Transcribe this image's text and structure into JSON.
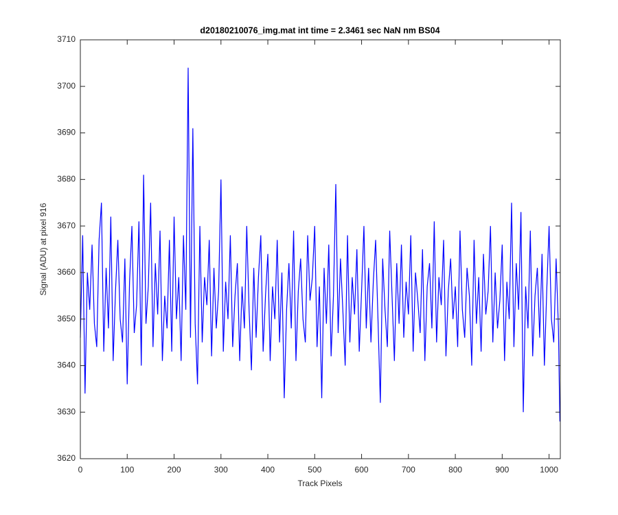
{
  "chart_data": {
    "type": "line",
    "title": "d20180210076_img.mat int time = 2.3461 sec  NaN nm BS04",
    "x_label": "Track Pixels",
    "y_label": "Signal (ADU) at pixel 916",
    "xlim": [
      0,
      1024
    ],
    "ylim": [
      3620,
      3710
    ],
    "xticks": [
      0,
      100,
      200,
      300,
      400,
      500,
      600,
      700,
      800,
      900,
      1000
    ],
    "yticks": [
      3620,
      3630,
      3640,
      3650,
      3660,
      3670,
      3680,
      3690,
      3700,
      3710
    ],
    "x": [
      0,
      5,
      10,
      15,
      20,
      25,
      30,
      35,
      40,
      45,
      50,
      55,
      60,
      65,
      70,
      75,
      80,
      85,
      90,
      95,
      100,
      105,
      110,
      115,
      120,
      125,
      130,
      135,
      140,
      145,
      150,
      155,
      160,
      165,
      170,
      175,
      180,
      185,
      190,
      195,
      200,
      205,
      210,
      215,
      220,
      225,
      230,
      235,
      240,
      245,
      250,
      255,
      260,
      265,
      270,
      275,
      280,
      285,
      290,
      295,
      300,
      305,
      310,
      315,
      320,
      325,
      330,
      335,
      340,
      345,
      350,
      355,
      360,
      365,
      370,
      375,
      380,
      385,
      390,
      395,
      400,
      405,
      410,
      415,
      420,
      425,
      430,
      435,
      440,
      445,
      450,
      455,
      460,
      465,
      470,
      475,
      480,
      485,
      490,
      495,
      500,
      505,
      510,
      515,
      520,
      525,
      530,
      535,
      540,
      545,
      550,
      555,
      560,
      565,
      570,
      575,
      580,
      585,
      590,
      595,
      600,
      605,
      610,
      615,
      620,
      625,
      630,
      635,
      640,
      645,
      650,
      655,
      660,
      665,
      670,
      675,
      680,
      685,
      690,
      695,
      700,
      705,
      710,
      715,
      720,
      725,
      730,
      735,
      740,
      745,
      750,
      755,
      760,
      765,
      770,
      775,
      780,
      785,
      790,
      795,
      800,
      805,
      810,
      815,
      820,
      825,
      830,
      835,
      840,
      845,
      850,
      855,
      860,
      865,
      870,
      875,
      880,
      885,
      890,
      895,
      900,
      905,
      910,
      915,
      920,
      925,
      930,
      935,
      940,
      945,
      950,
      955,
      960,
      965,
      970,
      975,
      980,
      985,
      990,
      995,
      1000,
      1005,
      1010,
      1015,
      1020,
      1023
    ],
    "series": [
      {
        "color": "#0000ff",
        "values": [
          3646,
          3668,
          3634,
          3660,
          3652,
          3666,
          3649,
          3644,
          3667,
          3675,
          3643,
          3661,
          3648,
          3672,
          3641,
          3656,
          3667,
          3650,
          3645,
          3663,
          3636,
          3658,
          3670,
          3647,
          3653,
          3671,
          3640,
          3681,
          3649,
          3657,
          3675,
          3644,
          3662,
          3651,
          3669,
          3641,
          3655,
          3648,
          3667,
          3643,
          3672,
          3650,
          3659,
          3641,
          3668,
          3652,
          3704,
          3646,
          3691,
          3649,
          3636,
          3670,
          3645,
          3659,
          3653,
          3667,
          3642,
          3661,
          3648,
          3656,
          3680,
          3643,
          3658,
          3650,
          3668,
          3644,
          3655,
          3662,
          3641,
          3657,
          3648,
          3670,
          3652,
          3639,
          3661,
          3646,
          3659,
          3668,
          3643,
          3655,
          3664,
          3641,
          3657,
          3650,
          3667,
          3645,
          3660,
          3633,
          3652,
          3662,
          3648,
          3669,
          3641,
          3656,
          3663,
          3650,
          3645,
          3668,
          3654,
          3659,
          3670,
          3644,
          3657,
          3633,
          3661,
          3649,
          3666,
          3642,
          3655,
          3679,
          3647,
          3663,
          3652,
          3640,
          3668,
          3645,
          3659,
          3651,
          3665,
          3643,
          3656,
          3670,
          3648,
          3661,
          3645,
          3658,
          3667,
          3650,
          3632,
          3663,
          3652,
          3644,
          3669,
          3655,
          3641,
          3662,
          3649,
          3666,
          3646,
          3658,
          3651,
          3668,
          3643,
          3660,
          3654,
          3647,
          3665,
          3641,
          3657,
          3662,
          3648,
          3671,
          3645,
          3659,
          3653,
          3667,
          3642,
          3656,
          3663,
          3650,
          3657,
          3644,
          3669,
          3652,
          3646,
          3661,
          3655,
          3640,
          3667,
          3649,
          3659,
          3643,
          3664,
          3651,
          3656,
          3670,
          3645,
          3660,
          3648,
          3654,
          3666,
          3641,
          3658,
          3650,
          3675,
          3644,
          3662,
          3652,
          3673,
          3630,
          3657,
          3648,
          3669,
          3642,
          3655,
          3661,
          3646,
          3664,
          3640,
          3656,
          3670,
          3650,
          3645,
          3663,
          3648,
          3628
        ]
      }
    ]
  }
}
